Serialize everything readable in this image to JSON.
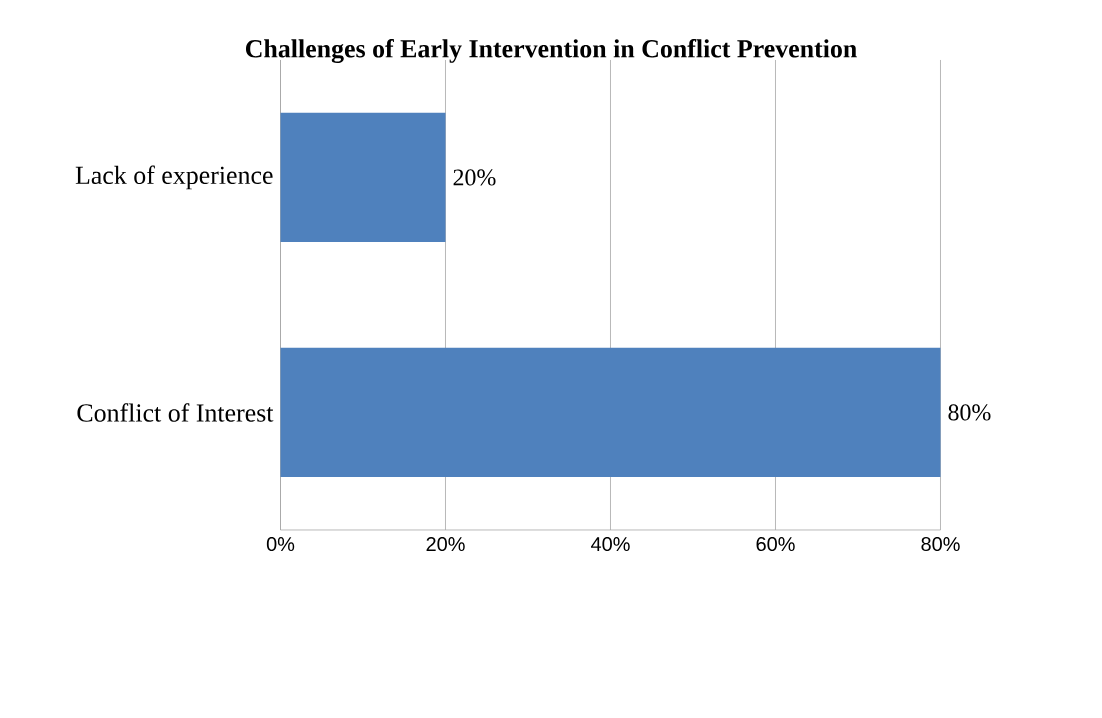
{
  "chart_data": {
    "type": "bar",
    "orientation": "horizontal",
    "title": "Challenges of Early Intervention in Conflict Prevention",
    "categories": [
      "Lack of experience",
      "Conflict of Interest"
    ],
    "values": [
      20,
      80
    ],
    "color": "#4f81bd",
    "value_labels": [
      "20%",
      "80%"
    ],
    "xlim": [
      0,
      80
    ],
    "xticks": [
      {
        "value": 0,
        "label": "0%"
      },
      {
        "value": 20,
        "label": "20%"
      },
      {
        "value": 40,
        "label": "40%"
      },
      {
        "value": 60,
        "label": "60%"
      },
      {
        "value": 80,
        "label": "80%"
      }
    ],
    "grid": "x"
  }
}
